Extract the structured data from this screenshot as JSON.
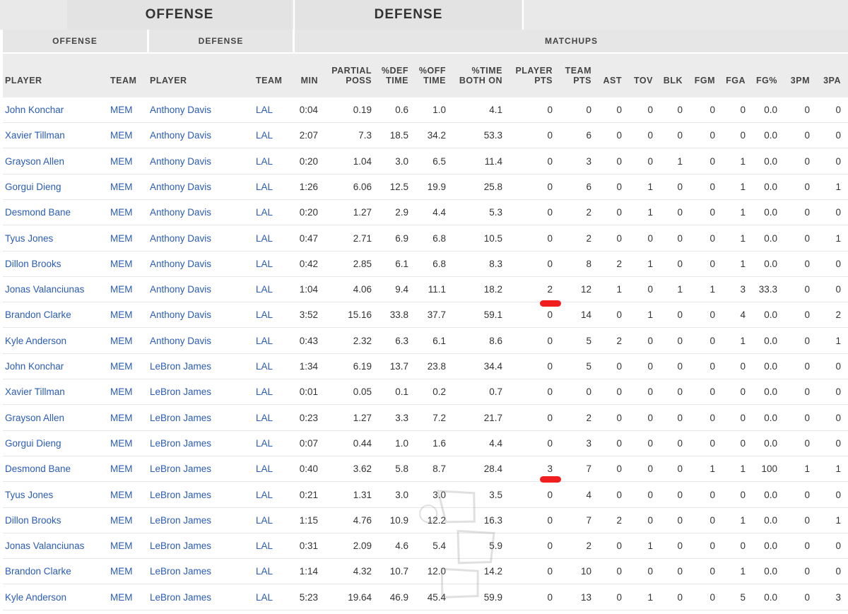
{
  "tabs": {
    "offense": "OFFENSE",
    "defense": "DEFENSE"
  },
  "groups": {
    "offense": "OFFENSE",
    "defense": "DEFENSE",
    "matchups": "MATCHUPS"
  },
  "columns": {
    "off_player": "PLAYER",
    "off_team": "TEAM",
    "def_player": "PLAYER",
    "def_team": "TEAM",
    "min": "MIN",
    "partial_poss": "PARTIAL\nPOSS",
    "pct_def_time": "%DEF\nTIME",
    "pct_off_time": "%OFF\nTIME",
    "pct_time_both_on": "%TIME\nBOTH ON",
    "player_pts": "PLAYER\nPTS",
    "team_pts": "TEAM\nPTS",
    "ast": "AST",
    "tov": "TOV",
    "blk": "BLK",
    "fgm": "FGM",
    "fga": "FGA",
    "fg_pct": "FG%",
    "three_pm": "3PM",
    "three_pa": "3PA"
  },
  "rows": [
    [
      "John Konchar",
      "MEM",
      "Anthony Davis",
      "LAL",
      "0:04",
      "0.19",
      "0.6",
      "1.0",
      "4.1",
      "0",
      "0",
      "0",
      "0",
      "0",
      "0",
      "0",
      "0.0",
      "0",
      "0"
    ],
    [
      "Xavier Tillman",
      "MEM",
      "Anthony Davis",
      "LAL",
      "2:07",
      "7.3",
      "18.5",
      "34.2",
      "53.3",
      "0",
      "6",
      "0",
      "0",
      "0",
      "0",
      "0",
      "0.0",
      "0",
      "0"
    ],
    [
      "Grayson Allen",
      "MEM",
      "Anthony Davis",
      "LAL",
      "0:20",
      "1.04",
      "3.0",
      "6.5",
      "11.4",
      "0",
      "3",
      "0",
      "0",
      "1",
      "0",
      "1",
      "0.0",
      "0",
      "0"
    ],
    [
      "Gorgui Dieng",
      "MEM",
      "Anthony Davis",
      "LAL",
      "1:26",
      "6.06",
      "12.5",
      "19.9",
      "25.8",
      "0",
      "6",
      "0",
      "1",
      "0",
      "0",
      "1",
      "0.0",
      "0",
      "1"
    ],
    [
      "Desmond Bane",
      "MEM",
      "Anthony Davis",
      "LAL",
      "0:20",
      "1.27",
      "2.9",
      "4.4",
      "5.3",
      "0",
      "2",
      "0",
      "1",
      "0",
      "0",
      "1",
      "0.0",
      "0",
      "0"
    ],
    [
      "Tyus Jones",
      "MEM",
      "Anthony Davis",
      "LAL",
      "0:47",
      "2.71",
      "6.9",
      "6.8",
      "10.5",
      "0",
      "2",
      "0",
      "0",
      "0",
      "0",
      "1",
      "0.0",
      "0",
      "1"
    ],
    [
      "Dillon Brooks",
      "MEM",
      "Anthony Davis",
      "LAL",
      "0:42",
      "2.85",
      "6.1",
      "6.8",
      "8.3",
      "0",
      "8",
      "2",
      "1",
      "0",
      "0",
      "1",
      "0.0",
      "0",
      "0"
    ],
    [
      "Jonas Valanciunas",
      "MEM",
      "Anthony Davis",
      "LAL",
      "1:04",
      "4.06",
      "9.4",
      "11.1",
      "18.2",
      "2",
      "12",
      "1",
      "0",
      "1",
      "1",
      "3",
      "33.3",
      "0",
      "0"
    ],
    [
      "Brandon Clarke",
      "MEM",
      "Anthony Davis",
      "LAL",
      "3:52",
      "15.16",
      "33.8",
      "37.7",
      "59.1",
      "0",
      "14",
      "0",
      "1",
      "0",
      "0",
      "4",
      "0.0",
      "0",
      "2"
    ],
    [
      "Kyle Anderson",
      "MEM",
      "Anthony Davis",
      "LAL",
      "0:43",
      "2.32",
      "6.3",
      "6.1",
      "8.6",
      "0",
      "5",
      "2",
      "0",
      "0",
      "0",
      "1",
      "0.0",
      "0",
      "1"
    ],
    [
      "John Konchar",
      "MEM",
      "LeBron James",
      "LAL",
      "1:34",
      "6.19",
      "13.7",
      "23.8",
      "34.4",
      "0",
      "5",
      "0",
      "0",
      "0",
      "0",
      "0",
      "0.0",
      "0",
      "0"
    ],
    [
      "Xavier Tillman",
      "MEM",
      "LeBron James",
      "LAL",
      "0:01",
      "0.05",
      "0.1",
      "0.2",
      "0.7",
      "0",
      "0",
      "0",
      "0",
      "0",
      "0",
      "0",
      "0.0",
      "0",
      "0"
    ],
    [
      "Grayson Allen",
      "MEM",
      "LeBron James",
      "LAL",
      "0:23",
      "1.27",
      "3.3",
      "7.2",
      "21.7",
      "0",
      "2",
      "0",
      "0",
      "0",
      "0",
      "0",
      "0.0",
      "0",
      "0"
    ],
    [
      "Gorgui Dieng",
      "MEM",
      "LeBron James",
      "LAL",
      "0:07",
      "0.44",
      "1.0",
      "1.6",
      "4.4",
      "0",
      "3",
      "0",
      "0",
      "0",
      "0",
      "0",
      "0.0",
      "0",
      "0"
    ],
    [
      "Desmond Bane",
      "MEM",
      "LeBron James",
      "LAL",
      "0:40",
      "3.62",
      "5.8",
      "8.7",
      "28.4",
      "3",
      "7",
      "0",
      "0",
      "0",
      "1",
      "1",
      "100",
      "1",
      "1"
    ],
    [
      "Tyus Jones",
      "MEM",
      "LeBron James",
      "LAL",
      "0:21",
      "1.31",
      "3.0",
      "3.0",
      "3.5",
      "0",
      "4",
      "0",
      "0",
      "0",
      "0",
      "0",
      "0.0",
      "0",
      "0"
    ],
    [
      "Dillon Brooks",
      "MEM",
      "LeBron James",
      "LAL",
      "1:15",
      "4.76",
      "10.9",
      "12.2",
      "16.3",
      "0",
      "7",
      "2",
      "0",
      "0",
      "0",
      "1",
      "0.0",
      "0",
      "1"
    ],
    [
      "Jonas Valanciunas",
      "MEM",
      "LeBron James",
      "LAL",
      "0:31",
      "2.09",
      "4.6",
      "5.4",
      "5.9",
      "0",
      "2",
      "0",
      "1",
      "0",
      "0",
      "0",
      "0.0",
      "0",
      "0"
    ],
    [
      "Brandon Clarke",
      "MEM",
      "LeBron James",
      "LAL",
      "1:14",
      "4.32",
      "10.7",
      "12.0",
      "14.2",
      "0",
      "10",
      "0",
      "0",
      "0",
      "0",
      "1",
      "0.0",
      "0",
      "0"
    ],
    [
      "Kyle Anderson",
      "MEM",
      "LeBron James",
      "LAL",
      "5:23",
      "19.64",
      "46.9",
      "45.4",
      "59.9",
      "0",
      "13",
      "0",
      "1",
      "0",
      "0",
      "5",
      "0.0",
      "0",
      "3"
    ]
  ],
  "highlight_color": "#f01e1e",
  "link_color": "#2a5cb8"
}
